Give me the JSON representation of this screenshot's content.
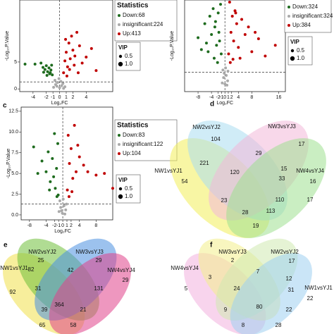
{
  "chart_data": [
    {
      "type": "scatter",
      "xlabel": "Log₂FC",
      "ylabel": "-Log₁₀P.Value",
      "xlim": [
        -6,
        8
      ],
      "ylim": [
        -0.5,
        16.5
      ],
      "xticks": [
        -4,
        -2,
        -1,
        0,
        1,
        2,
        4
      ],
      "yticks": [
        0,
        5
      ],
      "hline": 1.3,
      "vline": 0,
      "legend_title": "Statistics",
      "size_legend": {
        "title": "VIP",
        "values": [
          0.5,
          {
            "value": 1,
            "label": "1.0"
          }
        ]
      },
      "series": [
        {
          "name": "Down:68",
          "color": "#1e6b1e",
          "x": [
            -5.2,
            -3.7,
            -2.8,
            -2.5,
            -2.2,
            -2.0,
            -1.8,
            -1.6,
            -1.5,
            -1.3,
            -1.2,
            -1.1,
            -2.4,
            -1.9,
            -1.4
          ],
          "values": [
            4.6,
            4.6,
            4.8,
            4.0,
            3.6,
            4.3,
            3.2,
            3.9,
            2.8,
            3.5,
            4.4,
            2.6,
            3.1,
            2.5,
            3.0
          ]
        },
        {
          "name": "insignificant:224",
          "color": "#aaaaaa",
          "x": [
            -0.9,
            -0.6,
            -0.3,
            0.0,
            0.3,
            0.5,
            0.8,
            -0.7,
            -0.1,
            0.2,
            0.6,
            -0.4
          ],
          "values": [
            0.3,
            0.8,
            1.2,
            0.2,
            0.6,
            1.0,
            0.4,
            1.6,
            1.9,
            1.4,
            0.1,
            0.5
          ]
        },
        {
          "name": "Up:413",
          "color": "#c00000",
          "x": [
            0.6,
            0.8,
            1.0,
            1.2,
            1.4,
            1.6,
            1.8,
            2.0,
            2.3,
            2.6,
            3.0,
            3.4,
            4.0,
            4.8,
            5.5,
            1.1,
            1.5,
            2.2,
            2.8,
            0.9
          ],
          "values": [
            3.0,
            5.2,
            6.8,
            4.1,
            8.5,
            5.6,
            9.8,
            7.2,
            6.1,
            10.5,
            8.0,
            4.8,
            5.9,
            7.5,
            3.4,
            2.4,
            3.6,
            4.4,
            3.0,
            9.2
          ]
        }
      ]
    },
    {
      "type": "scatter",
      "xlabel": "Log₂FC",
      "ylabel": "-Log₁₀P.Value",
      "xlim": [
        -12,
        18
      ],
      "ylim": [
        -0.5,
        8
      ],
      "xticks": [
        -8,
        -4,
        -2,
        -1,
        0,
        1,
        2,
        4,
        8,
        16
      ],
      "hline": 1.3,
      "vline": 0,
      "size_legend": {
        "title": "VIP",
        "values": [
          0.5,
          {
            "value": 1,
            "label": "1.0"
          }
        ]
      },
      "series": [
        {
          "name": "Down:324",
          "color": "#1e6b1e",
          "x": [
            -8,
            -6,
            -5,
            -4.5,
            -4,
            -3.5,
            -3,
            -2.5,
            -2,
            -1.6,
            -1.3,
            -1.1,
            -3.2,
            -2.2,
            -5.5,
            -7,
            -2.8,
            -1.8
          ],
          "values": [
            4.5,
            5.8,
            3.2,
            6.5,
            4.8,
            7.2,
            5.5,
            3.8,
            6.8,
            4.2,
            7.6,
            3.0,
            2.6,
            2.2,
            4.0,
            3.4,
            6.0,
            5.0
          ]
        },
        {
          "name": "insignificant:324",
          "color": "#aaaaaa",
          "x": [
            -0.8,
            -0.4,
            0,
            0.4,
            0.8,
            -0.6,
            0.2,
            0.6,
            -0.2,
            0.9
          ],
          "values": [
            0.3,
            0.8,
            0.2,
            1.0,
            0.5,
            1.5,
            1.7,
            0.1,
            1.2,
            1.4
          ]
        },
        {
          "name": "Up:384",
          "color": "#c00000",
          "x": [
            1.1,
            1.4,
            1.8,
            2.2,
            2.6,
            3,
            3.5,
            4,
            5,
            6,
            7,
            8,
            10,
            12,
            15,
            1.6,
            2.4,
            3.2,
            4.5,
            9
          ],
          "values": [
            3,
            7.8,
            5,
            6.5,
            4.2,
            7,
            5.8,
            3.6,
            6.2,
            4.8,
            5.5,
            3.2,
            4.4,
            2.8,
            3.8,
            2.2,
            2.5,
            6.8,
            2.6,
            5.0
          ]
        }
      ]
    },
    {
      "type": "scatter",
      "panel_label": "c",
      "xlabel": "Log₂FC",
      "ylabel": "-Log₁₀P.Value",
      "xlim": [
        -10,
        12
      ],
      "ylim": [
        -0.6,
        13
      ],
      "xticks": [
        -8,
        -4,
        -2,
        -1,
        0,
        1,
        2,
        4,
        8
      ],
      "yticks": [
        {
          "value": 0,
          "label": "0.0"
        },
        2.5,
        {
          "value": 5,
          "label": "5.0"
        },
        7.5,
        {
          "value": 10,
          "label": "10.0"
        },
        12.5
      ],
      "hline": 1.3,
      "vline": 0,
      "legend_title": "Statistics",
      "size_legend": {
        "title": "VIP",
        "values": [
          0.5,
          {
            "value": 1,
            "label": "1.0"
          }
        ]
      },
      "series": [
        {
          "name": "Down:83",
          "color": "#1e6b1e",
          "x": [
            -7,
            -5,
            -4,
            -3.5,
            -3,
            -2.5,
            -2,
            -1.8,
            -1.5,
            -1.2,
            -1.1,
            -2.2,
            -3.2,
            -1.4,
            -6
          ],
          "values": [
            8.2,
            6.5,
            5.2,
            7.6,
            4.0,
            6.8,
            9.8,
            3.2,
            5.6,
            8.6,
            2.4,
            4.6,
            3.0,
            2.2,
            5.0
          ]
        },
        {
          "name": "insignificant:122",
          "color": "#aaaaaa",
          "x": [
            -0.9,
            -0.5,
            -0.1,
            0.3,
            0.7,
            -0.7,
            0.1,
            0.5,
            0.9,
            -0.3
          ],
          "values": [
            0.4,
            0.9,
            0.2,
            1.1,
            0.6,
            1.7,
            1.9,
            0.1,
            1.3,
            0.5
          ]
        },
        {
          "name": "Up:104",
          "color": "#c00000",
          "x": [
            1.1,
            1.3,
            1.6,
            2,
            2.4,
            2.8,
            3.2,
            4,
            5,
            6,
            8,
            10,
            12,
            1.5,
            2.2,
            3.6
          ],
          "values": [
            3,
            9.6,
            6.2,
            8,
            4.4,
            10.8,
            5.2,
            7,
            6,
            5.2,
            4.8,
            5,
            3.2,
            2.2,
            2.8,
            8.4
          ]
        }
      ]
    }
  ],
  "venn_diagrams": [
    {
      "panel_label": "d",
      "sets": [
        {
          "name": "NW1vsYJ1",
          "color": "#f3ef5a"
        },
        {
          "name": "NW2vsYJ2",
          "color": "#a9ddf0"
        },
        {
          "name": "NW3vsYJ3",
          "color": "#f2b8d8"
        },
        {
          "name": "NW4vsYJ4",
          "color": "#9ee08f"
        }
      ],
      "counts": [
        104,
        17,
        29,
        221,
        120,
        15,
        33,
        54,
        16,
        110,
        17,
        23,
        28,
        113,
        19
      ]
    },
    {
      "panel_label": "e",
      "sets": [
        {
          "name": "NW1vsYJ1",
          "color": "#f0e04a"
        },
        {
          "name": "NW2vsYJ2",
          "color": "#6fbf3a"
        },
        {
          "name": "NW3vsYJ3",
          "color": "#4a8fe0"
        },
        {
          "name": "NW4vsYJ4",
          "color": "#e0428a"
        }
      ],
      "counts": [
        25,
        29,
        82,
        42,
        31,
        131,
        92,
        29,
        39,
        364,
        21,
        65,
        58
      ]
    },
    {
      "panel_label": "f",
      "sets": [
        {
          "name": "NW4vsYJ4",
          "color": "#f2b0de"
        },
        {
          "name": "NW3vsYJ3",
          "color": "#f3ef8a"
        },
        {
          "name": "NW2vsYJ2",
          "color": "#cfeab0"
        },
        {
          "name": "NW1vsYJ1",
          "color": "#9fd0f0"
        }
      ],
      "counts": [
        5,
        2,
        17,
        3,
        7,
        12,
        24,
        31,
        22,
        9,
        80,
        22,
        8,
        28
      ]
    }
  ]
}
